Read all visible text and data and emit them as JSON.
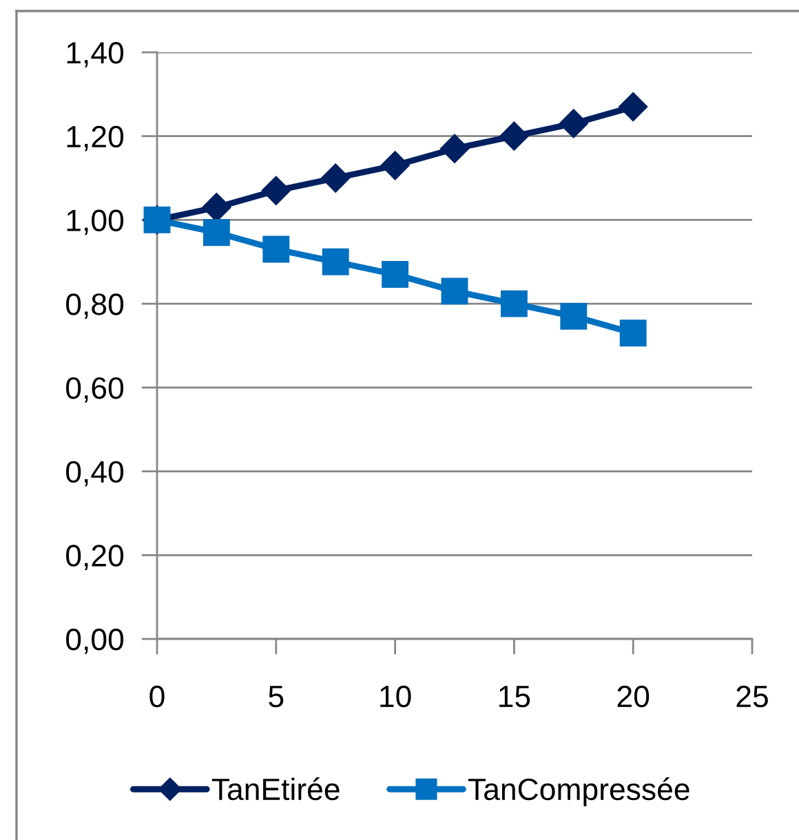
{
  "chart_data": {
    "type": "line",
    "x": [
      0,
      2.5,
      5,
      7.5,
      10,
      12.5,
      15,
      17.5,
      20
    ],
    "series": [
      {
        "name": "TanEtirée",
        "color": "#002060",
        "marker": "diamond",
        "values": [
          1.0,
          1.03,
          1.07,
          1.1,
          1.13,
          1.17,
          1.2,
          1.23,
          1.27
        ]
      },
      {
        "name": "TanCompressée",
        "color": "#0070c0",
        "marker": "square",
        "values": [
          1.0,
          0.97,
          0.93,
          0.9,
          0.87,
          0.83,
          0.8,
          0.77,
          0.73
        ]
      }
    ],
    "xlim": [
      0,
      25
    ],
    "xticks": [
      0,
      5,
      10,
      15,
      20,
      25
    ],
    "ylim": [
      0,
      1.4
    ],
    "yticks": [
      {
        "value": 0,
        "label": "0,00"
      },
      {
        "value": 0.2,
        "label": "0,20"
      },
      {
        "value": 0.4,
        "label": "0,40"
      },
      {
        "value": 0.6,
        "label": "0,60"
      },
      {
        "value": 0.8,
        "label": "0,80"
      },
      {
        "value": 1.0,
        "label": "1,00"
      },
      {
        "value": 1.2,
        "label": "1,20"
      },
      {
        "value": 1.4,
        "label": "1,40"
      }
    ],
    "grid": "y",
    "legend": "bottom",
    "line_style": "solid"
  }
}
